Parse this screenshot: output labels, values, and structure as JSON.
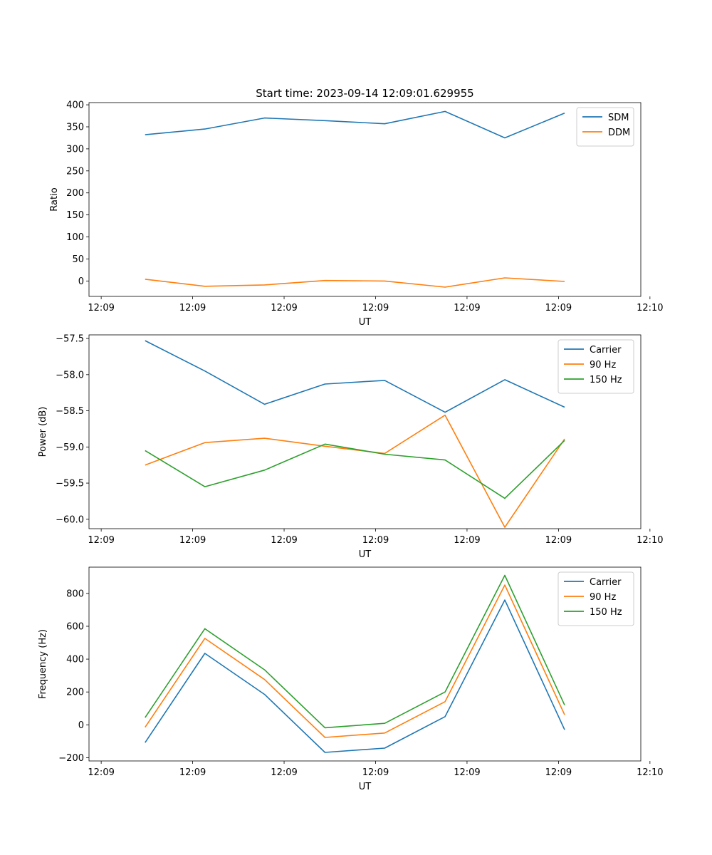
{
  "figure": {
    "title": "Start time: 2023-09-14 12:09:01.629955"
  },
  "chart_data": [
    {
      "type": "line",
      "xlabel": "UT",
      "ylabel": "Ratio",
      "xlim": [
        -0.45,
        8.6
      ],
      "ylim": [
        -35,
        405
      ],
      "x_ticks": [
        {
          "x": -0.25,
          "label": "12:09"
        },
        {
          "x": 1.25,
          "label": "12:09"
        },
        {
          "x": 2.75,
          "label": "12:09"
        },
        {
          "x": 4.25,
          "label": "12:09"
        },
        {
          "x": 5.75,
          "label": "12:09"
        },
        {
          "x": 7.25,
          "label": "12:09"
        },
        {
          "x": 8.75,
          "label": "12:10"
        }
      ],
      "y_ticks": [
        {
          "y": 0,
          "label": "0"
        },
        {
          "y": 50,
          "label": "50"
        },
        {
          "y": 100,
          "label": "100"
        },
        {
          "y": 150,
          "label": "150"
        },
        {
          "y": 200,
          "label": "200"
        },
        {
          "y": 250,
          "label": "250"
        },
        {
          "y": 300,
          "label": "300"
        },
        {
          "y": 350,
          "label": "350"
        },
        {
          "y": 400,
          "label": "400"
        }
      ],
      "x": [
        0.47,
        1.45,
        2.43,
        3.42,
        4.4,
        5.39,
        6.37,
        7.35
      ],
      "series": [
        {
          "name": "SDM",
          "color": "#1f77b4",
          "values": [
            332,
            345,
            370,
            364,
            357,
            385,
            325,
            381
          ]
        },
        {
          "name": "DDM",
          "color": "#ff7f0e",
          "values": [
            4,
            -12,
            -9,
            1,
            0,
            -14,
            7,
            -1
          ]
        }
      ],
      "legend": "upper right"
    },
    {
      "type": "line",
      "xlabel": "UT",
      "ylabel": "Power (dB)",
      "xlim": [
        -0.45,
        8.6
      ],
      "ylim": [
        -60.13,
        -57.45
      ],
      "x_ticks": [
        {
          "x": -0.25,
          "label": "12:09"
        },
        {
          "x": 1.25,
          "label": "12:09"
        },
        {
          "x": 2.75,
          "label": "12:09"
        },
        {
          "x": 4.25,
          "label": "12:09"
        },
        {
          "x": 5.75,
          "label": "12:09"
        },
        {
          "x": 7.25,
          "label": "12:09"
        },
        {
          "x": 8.75,
          "label": "12:10"
        }
      ],
      "y_ticks": [
        {
          "y": -60.0,
          "label": "−60.0"
        },
        {
          "y": -59.5,
          "label": "−59.5"
        },
        {
          "y": -59.0,
          "label": "−59.0"
        },
        {
          "y": -58.5,
          "label": "−58.5"
        },
        {
          "y": -58.0,
          "label": "−58.0"
        },
        {
          "y": -57.5,
          "label": "−57.5"
        }
      ],
      "x": [
        0.47,
        1.45,
        2.43,
        3.42,
        4.4,
        5.39,
        6.37,
        7.35
      ],
      "series": [
        {
          "name": "Carrier",
          "color": "#1f77b4",
          "values": [
            -57.53,
            -57.95,
            -58.41,
            -58.13,
            -58.08,
            -58.52,
            -58.07,
            -58.45
          ]
        },
        {
          "name": "90 Hz",
          "color": "#ff7f0e",
          "values": [
            -59.25,
            -58.94,
            -58.88,
            -58.99,
            -59.09,
            -58.56,
            -60.11,
            -58.89
          ]
        },
        {
          "name": "150 Hz",
          "color": "#2ca02c",
          "values": [
            -59.05,
            -59.55,
            -59.32,
            -58.96,
            -59.1,
            -59.18,
            -59.71,
            -58.91
          ]
        }
      ],
      "legend": "upper right"
    },
    {
      "type": "line",
      "xlabel": "UT",
      "ylabel": "Frequency (Hz)",
      "xlim": [
        -0.45,
        8.6
      ],
      "ylim": [
        -220,
        960
      ],
      "x_ticks": [
        {
          "x": -0.25,
          "label": "12:09"
        },
        {
          "x": 1.25,
          "label": "12:09"
        },
        {
          "x": 2.75,
          "label": "12:09"
        },
        {
          "x": 4.25,
          "label": "12:09"
        },
        {
          "x": 5.75,
          "label": "12:09"
        },
        {
          "x": 7.25,
          "label": "12:09"
        },
        {
          "x": 8.75,
          "label": "12:10"
        }
      ],
      "y_ticks": [
        {
          "y": -200,
          "label": "−200"
        },
        {
          "y": 0,
          "label": "0"
        },
        {
          "y": 200,
          "label": "200"
        },
        {
          "y": 400,
          "label": "400"
        },
        {
          "y": 600,
          "label": "600"
        },
        {
          "y": 800,
          "label": "800"
        }
      ],
      "x": [
        0.47,
        1.45,
        2.43,
        3.42,
        4.4,
        5.39,
        6.37,
        7.35
      ],
      "series": [
        {
          "name": "Carrier",
          "color": "#1f77b4",
          "values": [
            -108,
            435,
            185,
            -168,
            -142,
            50,
            760,
            -30
          ]
        },
        {
          "name": "90 Hz",
          "color": "#ff7f0e",
          "values": [
            -15,
            526,
            276,
            -77,
            -50,
            141,
            851,
            61
          ]
        },
        {
          "name": "150 Hz",
          "color": "#2ca02c",
          "values": [
            44,
            585,
            335,
            -18,
            9,
            200,
            910,
            120
          ]
        }
      ],
      "legend": "upper right"
    }
  ]
}
